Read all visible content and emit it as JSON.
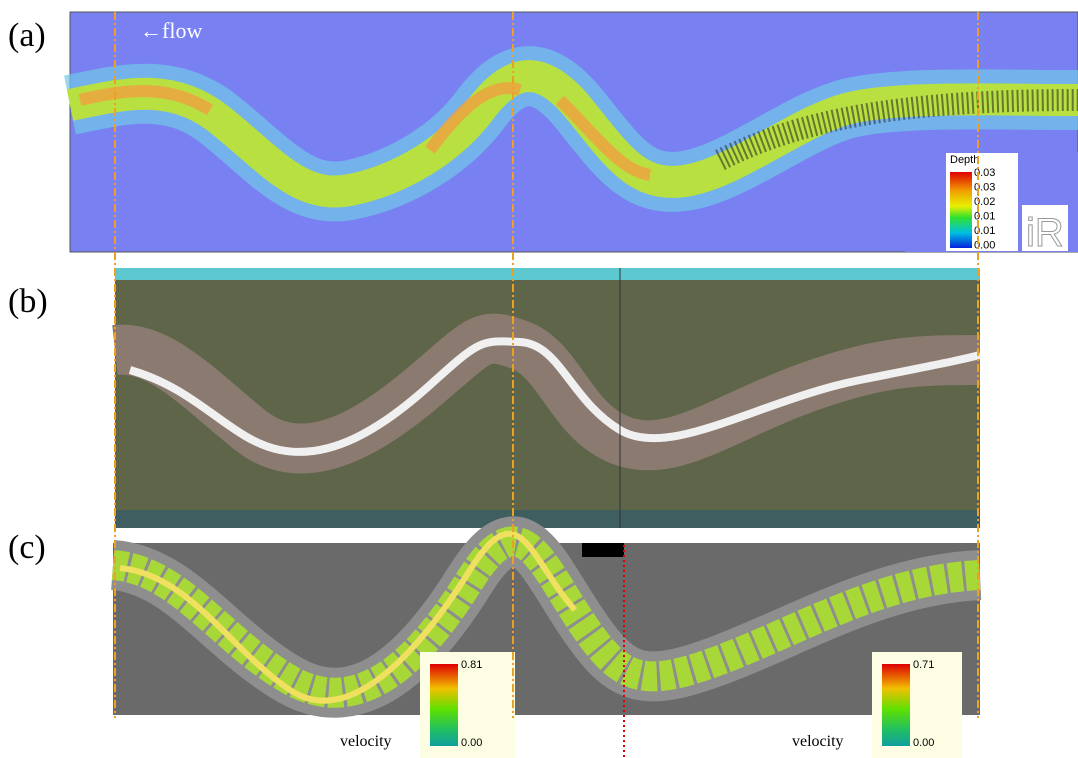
{
  "panels": [
    {
      "label": "(a)",
      "annotation": "←flow",
      "legend": {
        "title": "Depth",
        "ticks": [
          "0.03",
          "0.03",
          "0.02",
          "0.01",
          "0.01",
          "0.00"
        ]
      }
    },
    {
      "label": "(b)"
    },
    {
      "label": "(c)",
      "legends": [
        {
          "title": "velocity",
          "max": "0.81",
          "min": "0.00"
        },
        {
          "title": "velocity",
          "max": "0.71",
          "min": "0.00"
        }
      ]
    }
  ]
}
